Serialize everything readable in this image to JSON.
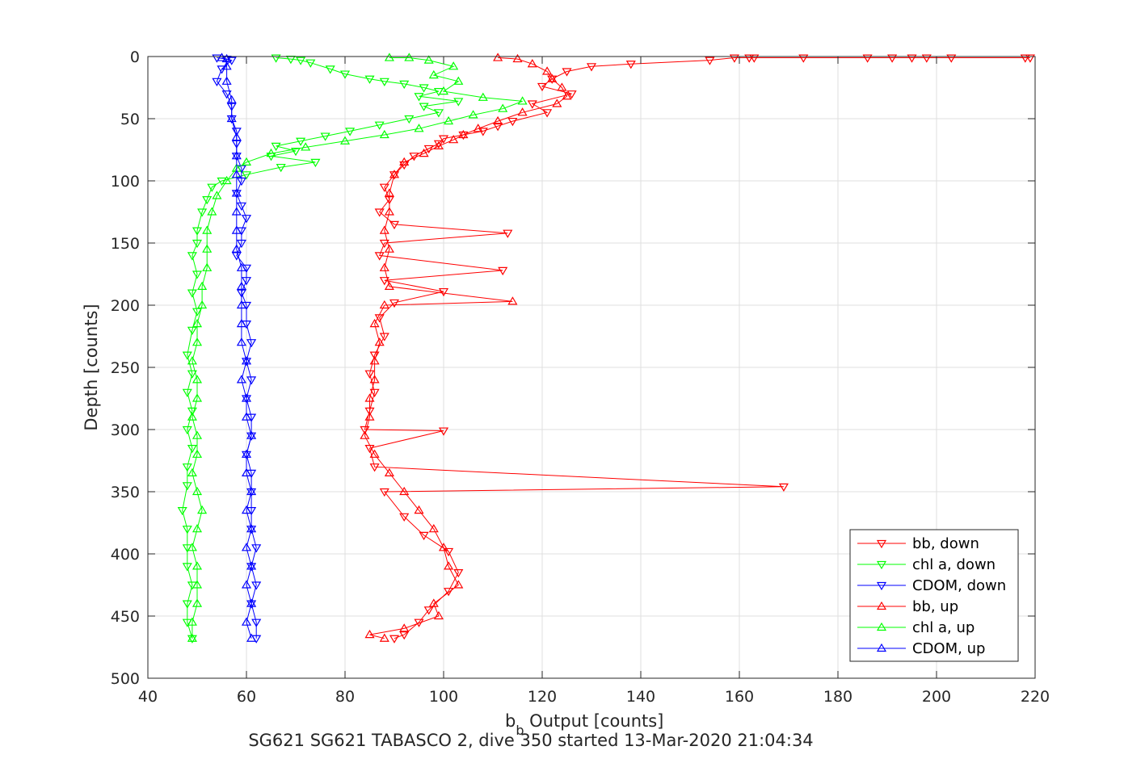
{
  "chart_data": {
    "type": "scatter",
    "title": "SG621 SG621 TABASCO 2, dive 350 started 13-Mar-2020 21:04:34",
    "xlabel_main": "b",
    "xlabel_sub": "b",
    "xlabel_rest": " Output [counts]",
    "ylabel": "Depth [counts]",
    "xlim": [
      40,
      220
    ],
    "ylim": [
      0,
      500
    ],
    "y_reversed": true,
    "grid": true,
    "legend_position": "bottom-right",
    "xticks": [
      40,
      60,
      80,
      100,
      120,
      140,
      160,
      180,
      200,
      220
    ],
    "yticks": [
      0,
      50,
      100,
      150,
      200,
      250,
      300,
      350,
      400,
      450,
      500
    ],
    "series": [
      {
        "name": "bb, down",
        "color": "#ff0000",
        "marker": "triangle-down",
        "connected": true,
        "points": [
          [
            219,
            1
          ],
          [
            218,
            1
          ],
          [
            203,
            1
          ],
          [
            198,
            1
          ],
          [
            195,
            1
          ],
          [
            191,
            1
          ],
          [
            186,
            1
          ],
          [
            173,
            1
          ],
          [
            163,
            1
          ],
          [
            162,
            1
          ],
          [
            159,
            1
          ],
          [
            154,
            3
          ],
          [
            138,
            6
          ],
          [
            130,
            8
          ],
          [
            125,
            12
          ],
          [
            122,
            18
          ],
          [
            120,
            24
          ],
          [
            126,
            30
          ],
          [
            118,
            38
          ],
          [
            121,
            45
          ],
          [
            114,
            52
          ],
          [
            111,
            56
          ],
          [
            108,
            60
          ],
          [
            104,
            63
          ],
          [
            100,
            66
          ],
          [
            99,
            70
          ],
          [
            97,
            74
          ],
          [
            94,
            80
          ],
          [
            92,
            87
          ],
          [
            90,
            95
          ],
          [
            88,
            105
          ],
          [
            89,
            115
          ],
          [
            87,
            125
          ],
          [
            90,
            135
          ],
          [
            113,
            142
          ],
          [
            88,
            150
          ],
          [
            87,
            160
          ],
          [
            112,
            172
          ],
          [
            88,
            180
          ],
          [
            100,
            189
          ],
          [
            90,
            198
          ],
          [
            87,
            210
          ],
          [
            88,
            225
          ],
          [
            86,
            240
          ],
          [
            85,
            255
          ],
          [
            86,
            270
          ],
          [
            85,
            285
          ],
          [
            84,
            300
          ],
          [
            100,
            301
          ],
          [
            85,
            315
          ],
          [
            86,
            330
          ],
          [
            169,
            346
          ],
          [
            88,
            350
          ],
          [
            92,
            370
          ],
          [
            96,
            385
          ],
          [
            101,
            398
          ],
          [
            103,
            415
          ],
          [
            101,
            430
          ],
          [
            97,
            445
          ],
          [
            95,
            455
          ],
          [
            92,
            465
          ],
          [
            90,
            468
          ]
        ]
      },
      {
        "name": "chl a, down",
        "color": "#00ff00",
        "marker": "triangle-down",
        "connected": true,
        "points": [
          [
            66,
            1
          ],
          [
            69,
            2
          ],
          [
            71,
            3
          ],
          [
            73,
            5
          ],
          [
            77,
            10
          ],
          [
            80,
            14
          ],
          [
            85,
            18
          ],
          [
            88,
            20
          ],
          [
            92,
            22
          ],
          [
            96,
            25
          ],
          [
            99,
            28
          ],
          [
            95,
            32
          ],
          [
            103,
            36
          ],
          [
            96,
            40
          ],
          [
            99,
            45
          ],
          [
            93,
            50
          ],
          [
            87,
            55
          ],
          [
            81,
            60
          ],
          [
            76,
            64
          ],
          [
            71,
            68
          ],
          [
            66,
            72
          ],
          [
            70,
            76
          ],
          [
            65,
            80
          ],
          [
            74,
            85
          ],
          [
            67,
            89
          ],
          [
            60,
            95
          ],
          [
            55,
            100
          ],
          [
            53,
            105
          ],
          [
            52,
            115
          ],
          [
            51,
            125
          ],
          [
            50,
            140
          ],
          [
            50,
            150
          ],
          [
            49,
            160
          ],
          [
            50,
            175
          ],
          [
            49,
            190
          ],
          [
            50,
            205
          ],
          [
            49,
            220
          ],
          [
            48,
            240
          ],
          [
            49,
            255
          ],
          [
            48,
            270
          ],
          [
            49,
            285
          ],
          [
            48,
            300
          ],
          [
            49,
            315
          ],
          [
            48,
            330
          ],
          [
            48,
            345
          ],
          [
            47,
            365
          ],
          [
            48,
            380
          ],
          [
            48,
            395
          ],
          [
            48,
            410
          ],
          [
            49,
            425
          ],
          [
            48,
            440
          ],
          [
            48,
            455
          ],
          [
            49,
            468
          ]
        ]
      },
      {
        "name": "CDOM, down",
        "color": "#0000ff",
        "marker": "triangle-down",
        "connected": true,
        "points": [
          [
            54,
            1
          ],
          [
            56,
            2
          ],
          [
            57,
            3
          ],
          [
            55,
            10
          ],
          [
            54,
            20
          ],
          [
            56,
            30
          ],
          [
            57,
            40
          ],
          [
            57,
            50
          ],
          [
            58,
            60
          ],
          [
            58,
            70
          ],
          [
            58,
            80
          ],
          [
            59,
            90
          ],
          [
            59,
            100
          ],
          [
            58,
            110
          ],
          [
            59,
            120
          ],
          [
            60,
            130
          ],
          [
            59,
            140
          ],
          [
            59,
            150
          ],
          [
            58,
            160
          ],
          [
            60,
            170
          ],
          [
            60,
            180
          ],
          [
            59,
            190
          ],
          [
            60,
            200
          ],
          [
            60,
            215
          ],
          [
            61,
            230
          ],
          [
            60,
            245
          ],
          [
            61,
            260
          ],
          [
            60,
            275
          ],
          [
            61,
            290
          ],
          [
            61,
            305
          ],
          [
            60,
            320
          ],
          [
            61,
            335
          ],
          [
            61,
            350
          ],
          [
            61,
            365
          ],
          [
            61,
            380
          ],
          [
            62,
            395
          ],
          [
            61,
            410
          ],
          [
            62,
            425
          ],
          [
            61,
            440
          ],
          [
            62,
            455
          ],
          [
            62,
            468
          ]
        ]
      },
      {
        "name": "bb, up",
        "color": "#ff0000",
        "marker": "triangle-up",
        "connected": true,
        "points": [
          [
            88,
            468
          ],
          [
            85,
            465
          ],
          [
            92,
            460
          ],
          [
            99,
            450
          ],
          [
            98,
            440
          ],
          [
            103,
            425
          ],
          [
            101,
            410
          ],
          [
            100,
            395
          ],
          [
            98,
            380
          ],
          [
            95,
            365
          ],
          [
            92,
            350
          ],
          [
            89,
            335
          ],
          [
            86,
            320
          ],
          [
            84,
            305
          ],
          [
            85,
            290
          ],
          [
            85,
            275
          ],
          [
            86,
            260
          ],
          [
            86,
            245
          ],
          [
            87,
            230
          ],
          [
            86,
            215
          ],
          [
            88,
            200
          ],
          [
            114,
            197
          ],
          [
            89,
            185
          ],
          [
            88,
            170
          ],
          [
            89,
            155
          ],
          [
            88,
            140
          ],
          [
            89,
            125
          ],
          [
            89,
            110
          ],
          [
            90,
            95
          ],
          [
            92,
            85
          ],
          [
            96,
            78
          ],
          [
            99,
            72
          ],
          [
            102,
            67
          ],
          [
            104,
            63
          ],
          [
            107,
            58
          ],
          [
            111,
            52
          ],
          [
            116,
            45
          ],
          [
            123,
            38
          ],
          [
            125,
            32
          ],
          [
            124,
            25
          ],
          [
            122,
            18
          ],
          [
            121,
            12
          ],
          [
            118,
            6
          ],
          [
            115,
            2
          ],
          [
            111,
            1
          ]
        ]
      },
      {
        "name": "chl a, up",
        "color": "#00ff00",
        "marker": "triangle-up",
        "connected": true,
        "points": [
          [
            49,
            468
          ],
          [
            49,
            455
          ],
          [
            50,
            440
          ],
          [
            50,
            425
          ],
          [
            50,
            410
          ],
          [
            49,
            395
          ],
          [
            50,
            380
          ],
          [
            51,
            365
          ],
          [
            50,
            350
          ],
          [
            49,
            335
          ],
          [
            50,
            320
          ],
          [
            50,
            305
          ],
          [
            49,
            290
          ],
          [
            50,
            275
          ],
          [
            50,
            260
          ],
          [
            49,
            245
          ],
          [
            50,
            230
          ],
          [
            50,
            215
          ],
          [
            51,
            200
          ],
          [
            51,
            185
          ],
          [
            52,
            170
          ],
          [
            52,
            155
          ],
          [
            52,
            140
          ],
          [
            53,
            125
          ],
          [
            54,
            112
          ],
          [
            56,
            100
          ],
          [
            58,
            90
          ],
          [
            60,
            85
          ],
          [
            65,
            78
          ],
          [
            72,
            73
          ],
          [
            80,
            68
          ],
          [
            88,
            63
          ],
          [
            95,
            58
          ],
          [
            101,
            52
          ],
          [
            106,
            47
          ],
          [
            112,
            42
          ],
          [
            116,
            36
          ],
          [
            108,
            33
          ],
          [
            100,
            28
          ],
          [
            103,
            20
          ],
          [
            98,
            15
          ],
          [
            102,
            8
          ],
          [
            97,
            3
          ],
          [
            93,
            1
          ],
          [
            89,
            1
          ]
        ]
      },
      {
        "name": "CDOM, up",
        "color": "#0000ff",
        "marker": "triangle-up",
        "connected": true,
        "points": [
          [
            61,
            468
          ],
          [
            60,
            455
          ],
          [
            61,
            440
          ],
          [
            60,
            425
          ],
          [
            61,
            410
          ],
          [
            60,
            395
          ],
          [
            61,
            380
          ],
          [
            60,
            365
          ],
          [
            61,
            350
          ],
          [
            60,
            335
          ],
          [
            60,
            320
          ],
          [
            61,
            305
          ],
          [
            60,
            290
          ],
          [
            60,
            275
          ],
          [
            59,
            260
          ],
          [
            60,
            245
          ],
          [
            59,
            230
          ],
          [
            59,
            215
          ],
          [
            59,
            200
          ],
          [
            59,
            185
          ],
          [
            59,
            170
          ],
          [
            58,
            155
          ],
          [
            58,
            140
          ],
          [
            58,
            125
          ],
          [
            58,
            110
          ],
          [
            58,
            95
          ],
          [
            58,
            80
          ],
          [
            58,
            65
          ],
          [
            57,
            50
          ],
          [
            57,
            35
          ],
          [
            56,
            20
          ],
          [
            56,
            8
          ],
          [
            56,
            2
          ],
          [
            55,
            1
          ]
        ]
      }
    ],
    "legend": [
      "bb, down",
      "chl a, down",
      "CDOM, down",
      "bb, up",
      "chl a, up",
      "CDOM, up"
    ]
  }
}
